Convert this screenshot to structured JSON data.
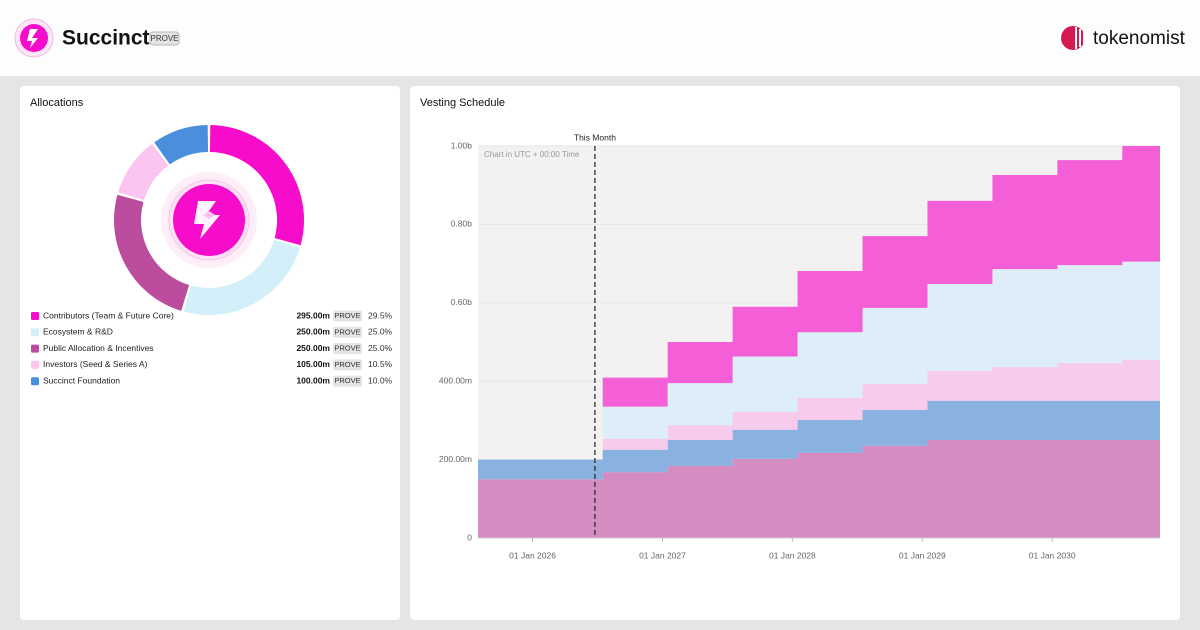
{
  "header": {
    "title": "Succinct",
    "symbol": "PROVE",
    "brand": "tokenomist"
  },
  "chart_data": [
    {
      "type": "pie",
      "title": "Allocations",
      "categories": [
        "Contributors (Team & Future Core)",
        "Ecosystem & R&D",
        "Public Allocation & Incentives",
        "Investors (Seed & Series A)",
        "Succinct Foundation"
      ],
      "values": [
        29.5,
        25,
        25,
        10.5,
        10
      ],
      "value_labels": [
        "29.5%",
        "25.0%",
        "25.0%",
        "10.5%",
        "10.0%"
      ],
      "amounts": [
        "295.00m",
        "250.00m",
        "250.00m",
        "105.00m",
        "100.00m"
      ],
      "colors": [
        "#f80ccb",
        "#d3effa",
        "#bb4c9e",
        "#fbc5ef",
        "#4a8fdc"
      ]
    },
    {
      "type": "area",
      "title": "Vesting Schedule",
      "note": "Chart in UTC + 00:00 Time",
      "x": [
        2025.58,
        2026.54,
        2027.04,
        2027.54,
        2028.04,
        2028.54,
        2029.04,
        2029.54,
        2030.04,
        2030.54
      ],
      "xlim": [
        2025.58,
        2030.83
      ],
      "xticks": [
        {
          "value": 2026,
          "label": "01 Jan 2026"
        },
        {
          "value": 2027,
          "label": "01 Jan 2027"
        },
        {
          "value": 2028,
          "label": "01 Jan 2028"
        },
        {
          "value": 2029,
          "label": "01 Jan 2029"
        },
        {
          "value": 2030,
          "label": "01 Jan 2030"
        }
      ],
      "ylim": [
        0,
        1000
      ],
      "yticks": [
        0,
        {
          "value": 200,
          "label": "200.00m"
        },
        {
          "value": 400,
          "label": "400.00m"
        },
        {
          "value": 600,
          "label": "0.60b"
        },
        {
          "value": 800,
          "label": "0.80b"
        },
        {
          "value": 1000,
          "label": "1.00b"
        }
      ],
      "grid": true,
      "series": [
        {
          "color": "#d58cc1",
          "values": [
            150,
            168,
            184,
            202,
            217,
            235,
            250,
            250,
            250,
            250
          ]
        },
        {
          "color": "#8ab2e1",
          "values": [
            50,
            57,
            66,
            74,
            84,
            92,
            100,
            100,
            100,
            100
          ]
        },
        {
          "color": "#f6cbec",
          "values": [
            0,
            28,
            38,
            46,
            56,
            66,
            76,
            86,
            96,
            105
          ]
        },
        {
          "color": "#ddeef8",
          "values": [
            0,
            82,
            107,
            141,
            168,
            194,
            222,
            250,
            250,
            250
          ]
        },
        {
          "color": "#f45ed7",
          "values": [
            0,
            74,
            105,
            127,
            156,
            183,
            212,
            240,
            268,
            295
          ]
        }
      ],
      "annotations": [
        {
          "label": "This Month",
          "x": 2026.48
        }
      ]
    }
  ]
}
